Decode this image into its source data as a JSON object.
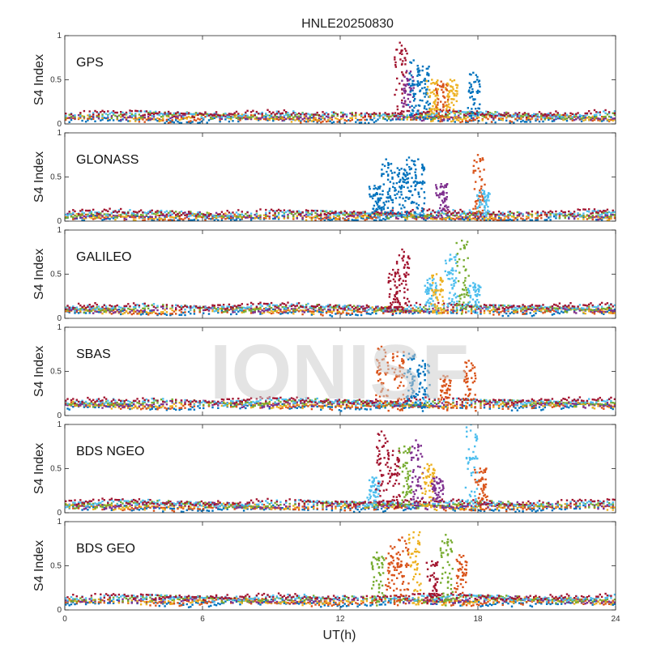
{
  "chart_data": {
    "type": "scatter",
    "title": "HNLE20250830",
    "xlabel": "UT(h)",
    "xlim": [
      0,
      24
    ],
    "xticks": [
      0,
      6,
      12,
      18,
      24
    ],
    "watermark": "IONISF",
    "series_colors": [
      "#0072BD",
      "#D95319",
      "#EDB120",
      "#7E2F8E",
      "#77AC30",
      "#4DBEEE",
      "#A2142F"
    ],
    "panels": [
      {
        "label": "GPS",
        "ylabel": "S4 Index",
        "ylim": [
          0,
          1
        ],
        "yticks": [
          0,
          0.5,
          1
        ],
        "ytick_labels": [
          "0",
          "0.5",
          "1"
        ],
        "baseline": 0.08,
        "bursts": [
          {
            "x": 14.6,
            "peak": 0.92,
            "color": "#A2142F"
          },
          {
            "x": 14.9,
            "peak": 0.6,
            "color": "#7E2F8E"
          },
          {
            "x": 15.2,
            "peak": 0.72,
            "color": "#0072BD"
          },
          {
            "x": 15.6,
            "peak": 0.65,
            "color": "#0072BD"
          },
          {
            "x": 16.0,
            "peak": 0.5,
            "color": "#EDB120"
          },
          {
            "x": 16.4,
            "peak": 0.48,
            "color": "#D95319"
          },
          {
            "x": 16.8,
            "peak": 0.5,
            "color": "#EDB120"
          },
          {
            "x": 17.8,
            "peak": 0.58,
            "color": "#0072BD"
          }
        ]
      },
      {
        "label": "GLONASS",
        "ylabel": "S4 Index",
        "ylim": [
          0,
          1
        ],
        "yticks": [
          0,
          0.5,
          1
        ],
        "ytick_labels": [
          "0",
          "0.5",
          "1"
        ],
        "baseline": 0.06,
        "bursts": [
          {
            "x": 13.5,
            "peak": 0.4,
            "color": "#0072BD"
          },
          {
            "x": 14.0,
            "peak": 0.7,
            "color": "#0072BD"
          },
          {
            "x": 14.5,
            "peak": 0.6,
            "color": "#0072BD"
          },
          {
            "x": 15.0,
            "peak": 0.72,
            "color": "#0072BD"
          },
          {
            "x": 15.4,
            "peak": 0.7,
            "color": "#0072BD"
          },
          {
            "x": 16.4,
            "peak": 0.42,
            "color": "#7E2F8E"
          },
          {
            "x": 18.0,
            "peak": 0.75,
            "color": "#D95319"
          },
          {
            "x": 18.2,
            "peak": 0.35,
            "color": "#4DBEEE"
          }
        ]
      },
      {
        "label": "GALILEO",
        "ylabel": "S4 Index",
        "ylim": [
          0,
          1
        ],
        "yticks": [
          0,
          0.5,
          1
        ],
        "ytick_labels": [
          "0",
          "0.5",
          "1"
        ],
        "baseline": 0.1,
        "bursts": [
          {
            "x": 14.3,
            "peak": 0.55,
            "color": "#A2142F"
          },
          {
            "x": 14.7,
            "peak": 0.78,
            "color": "#A2142F"
          },
          {
            "x": 15.9,
            "peak": 0.45,
            "color": "#4DBEEE"
          },
          {
            "x": 16.2,
            "peak": 0.5,
            "color": "#EDB120"
          },
          {
            "x": 16.8,
            "peak": 0.72,
            "color": "#4DBEEE"
          },
          {
            "x": 17.3,
            "peak": 0.88,
            "color": "#77AC30"
          },
          {
            "x": 17.8,
            "peak": 0.4,
            "color": "#4DBEEE"
          }
        ]
      },
      {
        "label": "SBAS",
        "ylabel": "S4 Index",
        "ylim": [
          0,
          1
        ],
        "yticks": [
          0,
          0.5,
          1
        ],
        "ytick_labels": [
          "0",
          "0.5",
          "1"
        ],
        "baseline": 0.13,
        "bursts": [
          {
            "x": 13.8,
            "peak": 0.78,
            "color": "#D95319"
          },
          {
            "x": 14.5,
            "peak": 0.72,
            "color": "#D95319"
          },
          {
            "x": 15.0,
            "peak": 0.7,
            "color": "#0072BD"
          },
          {
            "x": 15.6,
            "peak": 0.62,
            "color": "#0072BD"
          },
          {
            "x": 16.5,
            "peak": 0.45,
            "color": "#D95319"
          },
          {
            "x": 17.6,
            "peak": 0.62,
            "color": "#D95319"
          }
        ]
      },
      {
        "label": "BDS NGEO",
        "ylabel": "S4 Index",
        "ylim": [
          0,
          1
        ],
        "yticks": [
          0,
          0.5,
          1
        ],
        "ytick_labels": [
          "0",
          "0.5",
          "1"
        ],
        "baseline": 0.08,
        "bursts": [
          {
            "x": 13.4,
            "peak": 0.4,
            "color": "#4DBEEE"
          },
          {
            "x": 13.8,
            "peak": 0.92,
            "color": "#A2142F"
          },
          {
            "x": 14.3,
            "peak": 0.7,
            "color": "#A2142F"
          },
          {
            "x": 14.8,
            "peak": 0.75,
            "color": "#77AC30"
          },
          {
            "x": 15.3,
            "peak": 0.82,
            "color": "#7E2F8E"
          },
          {
            "x": 15.8,
            "peak": 0.55,
            "color": "#EDB120"
          },
          {
            "x": 16.2,
            "peak": 0.4,
            "color": "#7E2F8E"
          },
          {
            "x": 17.7,
            "peak": 1.0,
            "color": "#4DBEEE"
          },
          {
            "x": 18.1,
            "peak": 0.5,
            "color": "#D95319"
          }
        ]
      },
      {
        "label": "BDS GEO",
        "ylabel": "S4 Index",
        "ylim": [
          0,
          1
        ],
        "yticks": [
          0,
          0.5,
          1
        ],
        "ytick_labels": [
          "0",
          "0.5",
          "1"
        ],
        "baseline": 0.11,
        "bursts": [
          {
            "x": 13.6,
            "peak": 0.65,
            "color": "#77AC30"
          },
          {
            "x": 14.2,
            "peak": 0.72,
            "color": "#D95319"
          },
          {
            "x": 14.7,
            "peak": 0.82,
            "color": "#D95319"
          },
          {
            "x": 15.2,
            "peak": 0.88,
            "color": "#EDB120"
          },
          {
            "x": 16.0,
            "peak": 0.55,
            "color": "#A2142F"
          },
          {
            "x": 16.6,
            "peak": 0.85,
            "color": "#77AC30"
          },
          {
            "x": 17.2,
            "peak": 0.62,
            "color": "#D95319"
          }
        ]
      }
    ]
  }
}
